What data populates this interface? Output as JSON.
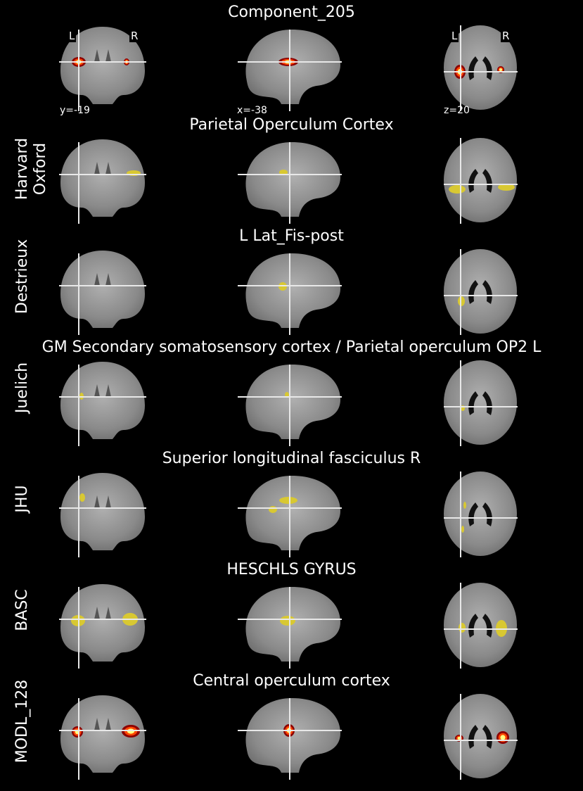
{
  "figure": {
    "rows": [
      {
        "title": "Component_205",
        "side_label": "",
        "blob": "hot",
        "coords": [
          "y=-19",
          "x=-38",
          "z=20"
        ],
        "lr": [
          "L",
          "R",
          "L",
          "R"
        ]
      },
      {
        "title": "Parietal Operculum Cortex",
        "side_label": "Harvard Oxford",
        "blob": "yellow"
      },
      {
        "title": "L Lat_Fis-post",
        "side_label": "Destrieux",
        "blob": "yellow"
      },
      {
        "title": "GM Secondary somatosensory cortex / Parietal operculum OP2 L",
        "side_label": "Juelich",
        "blob": "yellow"
      },
      {
        "title": "Superior longitudinal fasciculus R",
        "side_label": "JHU",
        "blob": "yellow"
      },
      {
        "title": "HESCHLS GYRUS",
        "side_label": "BASC",
        "blob": "yellow"
      },
      {
        "title": "Central operculum cortex",
        "side_label": "MODL_128",
        "blob": "hot"
      }
    ]
  }
}
